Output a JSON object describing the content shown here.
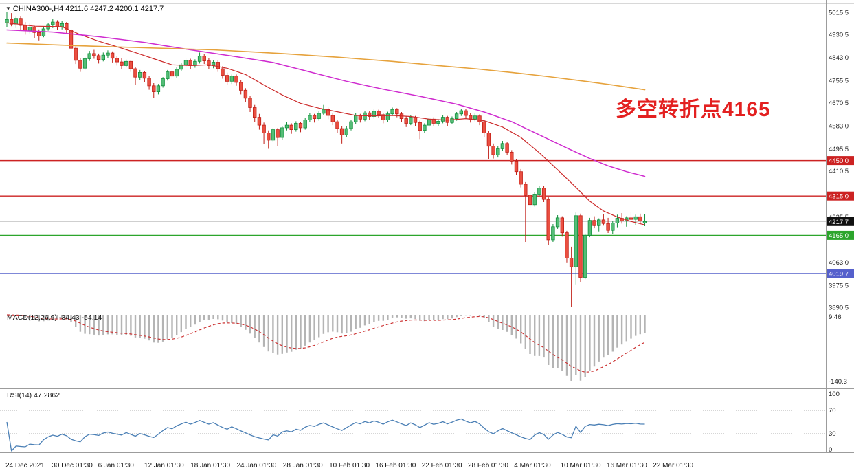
{
  "header": {
    "dropdown_icon": "▼",
    "symbol_info": "CHINA300-,H4 4211.6 4247.2 4200.1 4217.7"
  },
  "annotation": {
    "text": "多空转折点4165",
    "color": "#e32020"
  },
  "chart_data": {
    "type": "candlestick",
    "symbol": "CHINA300-",
    "timeframe": "H4",
    "current_bar": {
      "open": 4211.6,
      "high": 4247.2,
      "low": 4200.1,
      "close": 4217.7
    },
    "ylim": [
      3878,
      5062
    ],
    "price_ticks": [
      5015.5,
      4930.5,
      4843.0,
      4755.5,
      4670.5,
      4583.0,
      4495.5,
      4410.5,
      4235.5,
      4063.0,
      3975.5,
      3890.5
    ],
    "colors": {
      "up": {
        "fill": "#54bd77",
        "stroke": "#12913c"
      },
      "down": {
        "fill": "#ea4f41",
        "stroke": "#c01e16"
      }
    },
    "candles": [
      [
        4975,
        5016,
        4958,
        4988
      ],
      [
        4988,
        5012,
        4962,
        4970
      ],
      [
        4970,
        4998,
        4955,
        4992
      ],
      [
        4992,
        4999,
        4948,
        4965
      ],
      [
        4965,
        4978,
        4930,
        4945
      ],
      [
        4945,
        4972,
        4935,
        4958
      ],
      [
        4958,
        4964,
        4918,
        4938
      ],
      [
        4938,
        4950,
        4908,
        4925
      ],
      [
        4925,
        4958,
        4920,
        4952
      ],
      [
        4952,
        4975,
        4945,
        4968
      ],
      [
        4968,
        4990,
        4955,
        4978
      ],
      [
        4978,
        4985,
        4948,
        4960
      ],
      [
        4960,
        4982,
        4950,
        4972
      ],
      [
        4972,
        4978,
        4935,
        4948
      ],
      [
        4948,
        4952,
        4862,
        4878
      ],
      [
        4878,
        4885,
        4818,
        4832
      ],
      [
        4832,
        4842,
        4788,
        4802
      ],
      [
        4802,
        4845,
        4795,
        4838
      ],
      [
        4838,
        4868,
        4830,
        4858
      ],
      [
        4858,
        4872,
        4838,
        4850
      ],
      [
        4850,
        4858,
        4820,
        4835
      ],
      [
        4835,
        4862,
        4828,
        4852
      ],
      [
        4852,
        4870,
        4840,
        4860
      ],
      [
        4860,
        4866,
        4824,
        4840
      ],
      [
        4840,
        4848,
        4812,
        4826
      ],
      [
        4826,
        4840,
        4800,
        4812
      ],
      [
        4812,
        4835,
        4805,
        4828
      ],
      [
        4828,
        4834,
        4788,
        4800
      ],
      [
        4800,
        4806,
        4738,
        4768
      ],
      [
        4768,
        4795,
        4758,
        4786
      ],
      [
        4786,
        4792,
        4750,
        4764
      ],
      [
        4764,
        4772,
        4720,
        4735
      ],
      [
        4735,
        4745,
        4688,
        4712
      ],
      [
        4712,
        4742,
        4702,
        4735
      ],
      [
        4735,
        4768,
        4728,
        4762
      ],
      [
        4762,
        4795,
        4755,
        4788
      ],
      [
        4788,
        4796,
        4760,
        4772
      ],
      [
        4772,
        4805,
        4765,
        4798
      ],
      [
        4798,
        4822,
        4790,
        4815
      ],
      [
        4815,
        4840,
        4806,
        4832
      ],
      [
        4832,
        4838,
        4798,
        4812
      ],
      [
        4812,
        4836,
        4804,
        4828
      ],
      [
        4828,
        4862,
        4820,
        4848
      ],
      [
        4848,
        4855,
        4818,
        4830
      ],
      [
        4830,
        4840,
        4800,
        4812
      ],
      [
        4812,
        4832,
        4802,
        4825
      ],
      [
        4825,
        4832,
        4788,
        4800
      ],
      [
        4800,
        4810,
        4762,
        4775
      ],
      [
        4775,
        4785,
        4738,
        4752
      ],
      [
        4752,
        4778,
        4742,
        4772
      ],
      [
        4772,
        4778,
        4735,
        4748
      ],
      [
        4748,
        4756,
        4702,
        4718
      ],
      [
        4718,
        4726,
        4672,
        4688
      ],
      [
        4688,
        4698,
        4635,
        4652
      ],
      [
        4652,
        4662,
        4598,
        4615
      ],
      [
        4615,
        4628,
        4568,
        4585
      ],
      [
        4585,
        4595,
        4512,
        4555
      ],
      [
        4555,
        4565,
        4495,
        4528
      ],
      [
        4528,
        4575,
        4520,
        4568
      ],
      [
        4568,
        4574,
        4505,
        4538
      ],
      [
        4538,
        4582,
        4530,
        4575
      ],
      [
        4575,
        4598,
        4565,
        4585
      ],
      [
        4585,
        4592,
        4552,
        4568
      ],
      [
        4568,
        4600,
        4560,
        4592
      ],
      [
        4592,
        4598,
        4558,
        4575
      ],
      [
        4575,
        4612,
        4568,
        4605
      ],
      [
        4605,
        4630,
        4598,
        4622
      ],
      [
        4622,
        4628,
        4595,
        4610
      ],
      [
        4610,
        4638,
        4602,
        4630
      ],
      [
        4630,
        4662,
        4622,
        4645
      ],
      [
        4645,
        4652,
        4608,
        4622
      ],
      [
        4622,
        4630,
        4585,
        4598
      ],
      [
        4598,
        4606,
        4555,
        4572
      ],
      [
        4572,
        4580,
        4515,
        4548
      ],
      [
        4548,
        4580,
        4540,
        4572
      ],
      [
        4572,
        4606,
        4565,
        4598
      ],
      [
        4598,
        4630,
        4590,
        4622
      ],
      [
        4622,
        4628,
        4595,
        4608
      ],
      [
        4608,
        4640,
        4600,
        4632
      ],
      [
        4632,
        4638,
        4605,
        4618
      ],
      [
        4618,
        4645,
        4610,
        4638
      ],
      [
        4638,
        4644,
        4612,
        4625
      ],
      [
        4625,
        4632,
        4592,
        4605
      ],
      [
        4605,
        4636,
        4598,
        4628
      ],
      [
        4628,
        4652,
        4620,
        4645
      ],
      [
        4645,
        4650,
        4615,
        4628
      ],
      [
        4628,
        4635,
        4598,
        4610
      ],
      [
        4610,
        4618,
        4578,
        4592
      ],
      [
        4592,
        4622,
        4585,
        4615
      ],
      [
        4615,
        4620,
        4582,
        4595
      ],
      [
        4595,
        4602,
        4532,
        4565
      ],
      [
        4565,
        4592,
        4555,
        4585
      ],
      [
        4585,
        4615,
        4578,
        4608
      ],
      [
        4608,
        4615,
        4580,
        4592
      ],
      [
        4592,
        4608,
        4580,
        4600
      ],
      [
        4600,
        4622,
        4592,
        4615
      ],
      [
        4615,
        4620,
        4582,
        4595
      ],
      [
        4595,
        4618,
        4588,
        4610
      ],
      [
        4610,
        4635,
        4602,
        4628
      ],
      [
        4628,
        4648,
        4620,
        4640
      ],
      [
        4640,
        4646,
        4610,
        4622
      ],
      [
        4622,
        4630,
        4595,
        4608
      ],
      [
        4608,
        4632,
        4600,
        4620
      ],
      [
        4620,
        4626,
        4585,
        4598
      ],
      [
        4598,
        4606,
        4540,
        4555
      ],
      [
        4555,
        4562,
        4455,
        4505
      ],
      [
        4505,
        4515,
        4458,
        4472
      ],
      [
        4472,
        4505,
        4462,
        4495
      ],
      [
        4495,
        4525,
        4488,
        4515
      ],
      [
        4515,
        4522,
        4470,
        4482
      ],
      [
        4482,
        4490,
        4435,
        4448
      ],
      [
        4448,
        4456,
        4395,
        4408
      ],
      [
        4408,
        4418,
        4348,
        4360
      ],
      [
        4360,
        4368,
        4140,
        4318
      ],
      [
        4318,
        4328,
        4268,
        4282
      ],
      [
        4282,
        4330,
        4275,
        4322
      ],
      [
        4322,
        4352,
        4315,
        4345
      ],
      [
        4345,
        4352,
        4292,
        4302
      ],
      [
        4302,
        4310,
        4128,
        4148
      ],
      [
        4148,
        4208,
        4140,
        4198
      ],
      [
        4198,
        4242,
        4190,
        4232
      ],
      [
        4232,
        4238,
        4160,
        4175
      ],
      [
        4175,
        4182,
        4062,
        4078
      ],
      [
        4078,
        4122,
        3892,
        4045
      ],
      [
        4045,
        4252,
        3978,
        4240
      ],
      [
        4240,
        4248,
        3988,
        4005
      ],
      [
        4005,
        4172,
        3998,
        4165
      ],
      [
        4165,
        4232,
        4158,
        4222
      ],
      [
        4222,
        4238,
        4192,
        4202
      ],
      [
        4202,
        4230,
        4180,
        4224
      ],
      [
        4224,
        4246,
        4202,
        4210
      ],
      [
        4210,
        4232,
        4174,
        4184
      ],
      [
        4184,
        4220,
        4170,
        4212
      ],
      [
        4212,
        4244,
        4196,
        4230
      ],
      [
        4230,
        4250,
        4210,
        4220
      ],
      [
        4220,
        4238,
        4198,
        4232
      ],
      [
        4232,
        4256,
        4212,
        4226
      ],
      [
        4226,
        4244,
        4204,
        4236
      ],
      [
        4236,
        4248,
        4208,
        4220
      ],
      [
        4211.6,
        4247.2,
        4200.1,
        4217.7
      ]
    ],
    "ma_lines": [
      {
        "name": "ma-fast-red",
        "color": "#cc2a2a",
        "width": 1.2,
        "points": [
          [
            0,
            4975
          ],
          [
            6,
            4962
          ],
          [
            12,
            4960
          ],
          [
            16,
            4930
          ],
          [
            20,
            4905
          ],
          [
            24,
            4884
          ],
          [
            28,
            4862
          ],
          [
            32,
            4838
          ],
          [
            36,
            4815
          ],
          [
            40,
            4812
          ],
          [
            44,
            4815
          ],
          [
            48,
            4802
          ],
          [
            52,
            4778
          ],
          [
            56,
            4738
          ],
          [
            60,
            4700
          ],
          [
            64,
            4668
          ],
          [
            68,
            4650
          ],
          [
            72,
            4636
          ],
          [
            76,
            4622
          ],
          [
            80,
            4620
          ],
          [
            84,
            4622
          ],
          [
            88,
            4618
          ],
          [
            92,
            4608
          ],
          [
            96,
            4604
          ],
          [
            100,
            4610
          ],
          [
            104,
            4602
          ],
          [
            108,
            4578
          ],
          [
            112,
            4538
          ],
          [
            116,
            4480
          ],
          [
            120,
            4415
          ],
          [
            124,
            4348
          ],
          [
            127,
            4295
          ],
          [
            130,
            4258
          ],
          [
            133,
            4235
          ],
          [
            136,
            4218
          ],
          [
            139,
            4205
          ]
        ]
      },
      {
        "name": "ma-medium-magenta",
        "color": "#cf2bcf",
        "width": 1.5,
        "points": [
          [
            0,
            4948
          ],
          [
            10,
            4940
          ],
          [
            20,
            4922
          ],
          [
            30,
            4900
          ],
          [
            40,
            4872
          ],
          [
            50,
            4846
          ],
          [
            58,
            4824
          ],
          [
            66,
            4788
          ],
          [
            74,
            4752
          ],
          [
            82,
            4722
          ],
          [
            90,
            4695
          ],
          [
            98,
            4665
          ],
          [
            104,
            4635
          ],
          [
            110,
            4598
          ],
          [
            116,
            4548
          ],
          [
            122,
            4498
          ],
          [
            127,
            4458
          ],
          [
            131,
            4430
          ],
          [
            135,
            4408
          ],
          [
            139,
            4390
          ]
        ]
      },
      {
        "name": "ma-slow-orange",
        "color": "#e6a23c",
        "width": 1.6,
        "points": [
          [
            0,
            4898
          ],
          [
            15,
            4888
          ],
          [
            30,
            4880
          ],
          [
            45,
            4872
          ],
          [
            60,
            4858
          ],
          [
            72,
            4844
          ],
          [
            84,
            4828
          ],
          [
            94,
            4812
          ],
          [
            102,
            4800
          ],
          [
            110,
            4786
          ],
          [
            118,
            4770
          ],
          [
            126,
            4752
          ],
          [
            132,
            4738
          ],
          [
            139,
            4720
          ]
        ]
      }
    ],
    "hlines": [
      {
        "price": 4450.0,
        "label": "4450.0",
        "color": "#cc2222"
      },
      {
        "price": 4315.0,
        "label": "4315.0",
        "color": "#cc2222"
      },
      {
        "price": 4165.0,
        "label": "4165.0",
        "color": "#2ca52c"
      },
      {
        "price": 4019.7,
        "label": "4019.7",
        "color": "#5560cc"
      }
    ],
    "current_price": {
      "value": 4217.7,
      "label": "4217.7",
      "bg": "#111111",
      "fg": "#ffffff",
      "line_color": "#c8c8c8"
    },
    "indicators": [
      {
        "name": "MACD",
        "label": "MACD(12,26,9) -34.43 -54.14",
        "fast": 12,
        "slow": 26,
        "signal": 9,
        "main_value": -34.43,
        "signal_value": -54.14,
        "axis_max": "9.46",
        "axis_min": "-140.3",
        "histogram_color": "#b4b4b4",
        "signal_color": "#cc3333"
      },
      {
        "name": "RSI",
        "label": "RSI(14) 47.2862",
        "period": 14,
        "value": 47.2862,
        "levels": [
          70,
          30
        ],
        "axis_labels": [
          "100",
          "70",
          "30",
          "0"
        ],
        "line_color": "#4a7fb5"
      }
    ],
    "x_labels": [
      "24 Dec 2021",
      "30 Dec 01:30",
      "6 Jan 01:30",
      "12 Jan 01:30",
      "18 Jan 01:30",
      "24 Jan 01:30",
      "28 Jan 01:30",
      "10 Feb 01:30",
      "16 Feb 01:30",
      "22 Feb 01:30",
      "28 Feb 01:30",
      "4 Mar 01:30",
      "10 Mar 01:30",
      "16 Mar 01:30",
      "22 Mar 01:30"
    ]
  }
}
